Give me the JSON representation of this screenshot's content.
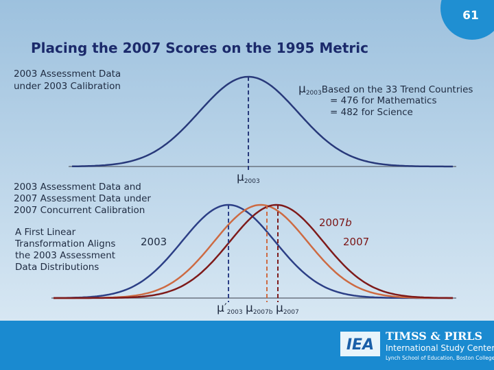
{
  "slide_number": "61",
  "title": "Placing the 2007 Scores on the 1995 Metric",
  "top_panel": {
    "label": [
      "2003 Assessment Data",
      "under 2003 Calibration"
    ],
    "mean_note": {
      "symbol": "μ",
      "sub": "2003",
      "lines": [
        "Based on the 33 Trend Countries",
        "= 476 for Mathematics",
        "= 482 for Science"
      ]
    },
    "mean_label": {
      "symbol": "μ",
      "sub": "2003"
    }
  },
  "bottom_panel": {
    "label": [
      "2003 Assessment Data and",
      "2007 Assessment Data under",
      "2007 Concurrent Calibration"
    ],
    "note": [
      "A First Linear",
      "Transformation Aligns",
      "the 2003 Assessment",
      "Data Distributions"
    ],
    "curve_labels": [
      {
        "text": "2003"
      },
      {
        "text": "2007",
        "suffix": "b"
      },
      {
        "text": "2007"
      }
    ],
    "mean_labels": [
      {
        "symbol": "μ′",
        "sub": "2003"
      },
      {
        "symbol": "μ",
        "sub": "2007b"
      },
      {
        "symbol": "μ",
        "sub": "2007"
      }
    ]
  },
  "footer": {
    "logo": "IEA",
    "org": "TIMSS & PIRLS",
    "center": "International Study Center",
    "school": "Lynch School of Education, Boston College"
  }
}
